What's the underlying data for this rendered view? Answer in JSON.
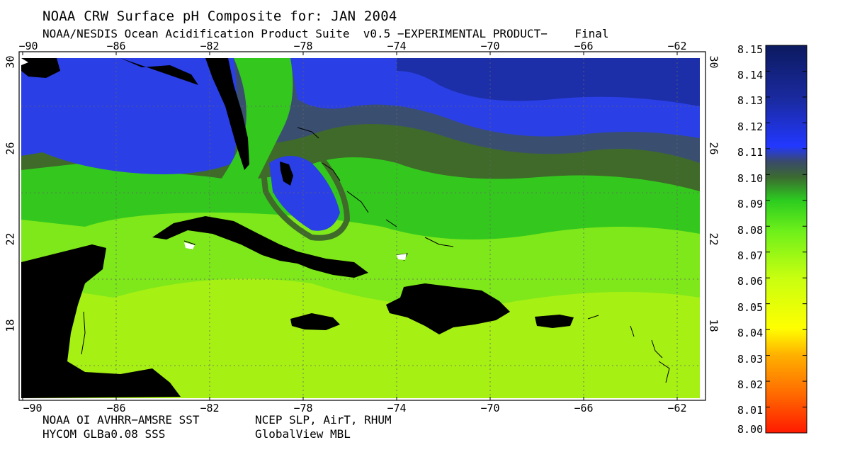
{
  "header": {
    "title": "NOAA CRW Surface pH Composite for: JAN 2004",
    "subtitle": "NOAA/NESDIS Ocean Acidification Product Suite  v0.5 −EXPERIMENTAL PRODUCT−    Final"
  },
  "axes": {
    "lon_ticks": [
      "−90",
      "−86",
      "−82",
      "−78",
      "−74",
      "−70",
      "−66",
      "−62"
    ],
    "lat_ticks": [
      "30",
      "26",
      "22",
      "18"
    ]
  },
  "colorbar": {
    "labels": [
      "8.15",
      "8.14",
      "8.13",
      "8.12",
      "8.11",
      "8.10",
      "8.09",
      "8.08",
      "8.07",
      "8.06",
      "8.05",
      "8.04",
      "8.03",
      "8.02",
      "8.01",
      "8.00"
    ],
    "min": 8.0,
    "max": 8.15
  },
  "credits": {
    "left_line1": "NOAA OI AVHRR−AMSRE SST",
    "left_line2": "HYCOM GLBa0.08 SSS",
    "right_line1": "NCEP SLP, AirT, RHUM",
    "right_line2": "GlobalView MBL"
  },
  "colors": {
    "land": "#000000",
    "high_ph": "#102a8c",
    "blue": "#2a3fe6",
    "dark_green": "#3a5a2a",
    "green": "#34c81e",
    "lime": "#7ee81a",
    "yellow_green": "#a6f014"
  }
}
